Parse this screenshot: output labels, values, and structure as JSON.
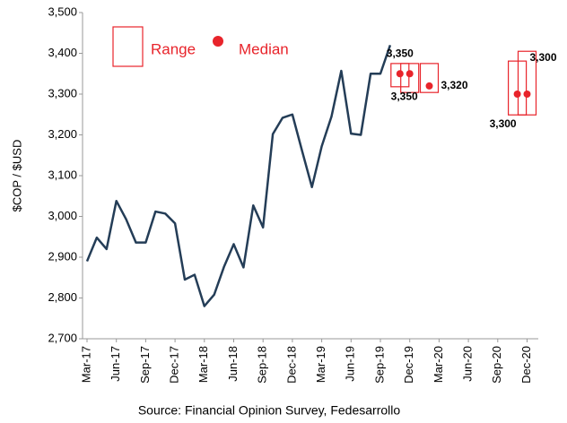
{
  "chart_data": {
    "type": "line",
    "y_label": "$COP / $USD",
    "source": "Source: Financial Opinion Survey, Fedesarrollo",
    "categories": [
      "Mar-17",
      null,
      null,
      "Jun-17",
      null,
      null,
      "Sep-17",
      null,
      null,
      "Dec-17",
      null,
      null,
      "Mar-18",
      null,
      null,
      "Jun-18",
      null,
      null,
      "Sep-18",
      null,
      null,
      "Dec-18",
      null,
      null,
      "Mar-19",
      null,
      null,
      "Jun-19",
      null,
      null,
      "Sep-19",
      null,
      null,
      "Dec-19",
      null,
      null,
      "Mar-20",
      null,
      null,
      "Jun-20",
      null,
      null,
      "Sep-20",
      null,
      null,
      "Dec-20"
    ],
    "ylim": [
      2700,
      3500
    ],
    "yticks": [
      {
        "value": 2700,
        "label": "2,700"
      },
      {
        "value": 2800,
        "label": "2,800"
      },
      {
        "value": 2900,
        "label": "2,900"
      },
      {
        "value": 3000,
        "label": "3,000"
      },
      {
        "value": 3100,
        "label": "3,100"
      },
      {
        "value": 3200,
        "label": "3,200"
      },
      {
        "value": 3300,
        "label": "3,300"
      },
      {
        "value": 3400,
        "label": "3,400"
      },
      {
        "value": 3500,
        "label": "3,500"
      }
    ],
    "grid": false,
    "legend_position": "upper left",
    "series": [
      {
        "type": "line",
        "color": "#243d57",
        "values": [
          2890,
          2948,
          2920,
          3038,
          2993,
          2936,
          2936,
          3012,
          3007,
          2983,
          2845,
          2857,
          2780,
          2808,
          2876,
          2932,
          2875,
          3027,
          2973,
          3202,
          3242,
          3250,
          3160,
          3072,
          3172,
          3245,
          3357,
          3203,
          3200,
          3350,
          3350,
          3420,
          null,
          null,
          null,
          null,
          null,
          null,
          null,
          null,
          null,
          null,
          null,
          null,
          null,
          null
        ]
      },
      {
        "type": "range",
        "name": "Range",
        "color": "#e8242b",
        "low": [
          null,
          null,
          null,
          null,
          null,
          null,
          null,
          null,
          null,
          null,
          null,
          null,
          null,
          null,
          null,
          null,
          null,
          null,
          null,
          null,
          null,
          null,
          null,
          null,
          null,
          null,
          null,
          null,
          null,
          null,
          null,
          null,
          3318,
          3304,
          null,
          3304,
          null,
          null,
          null,
          null,
          null,
          null,
          null,
          null,
          3249,
          3249
        ],
        "high": [
          null,
          null,
          null,
          null,
          null,
          null,
          null,
          null,
          null,
          null,
          null,
          null,
          null,
          null,
          null,
          null,
          null,
          null,
          null,
          null,
          null,
          null,
          null,
          null,
          null,
          null,
          null,
          null,
          null,
          null,
          null,
          null,
          3375,
          3375,
          null,
          3375,
          null,
          null,
          null,
          null,
          null,
          null,
          null,
          null,
          3381,
          3405
        ]
      },
      {
        "type": "scatter",
        "name": "Median",
        "color": "#e8242b",
        "values": [
          null,
          null,
          null,
          null,
          null,
          null,
          null,
          null,
          null,
          null,
          null,
          null,
          null,
          null,
          null,
          null,
          null,
          null,
          null,
          null,
          null,
          null,
          null,
          null,
          null,
          null,
          null,
          null,
          null,
          null,
          null,
          null,
          3350,
          3350,
          null,
          3320,
          null,
          null,
          null,
          null,
          null,
          null,
          null,
          null,
          3300,
          3300
        ],
        "value_labels": [
          null,
          null,
          null,
          null,
          null,
          null,
          null,
          null,
          null,
          null,
          null,
          null,
          null,
          null,
          null,
          null,
          null,
          null,
          null,
          null,
          null,
          null,
          null,
          null,
          null,
          null,
          null,
          null,
          null,
          null,
          null,
          null,
          "3,350",
          "3,350",
          null,
          "3,320",
          null,
          null,
          null,
          null,
          null,
          null,
          null,
          null,
          "3,300",
          "3,300"
        ]
      }
    ]
  }
}
